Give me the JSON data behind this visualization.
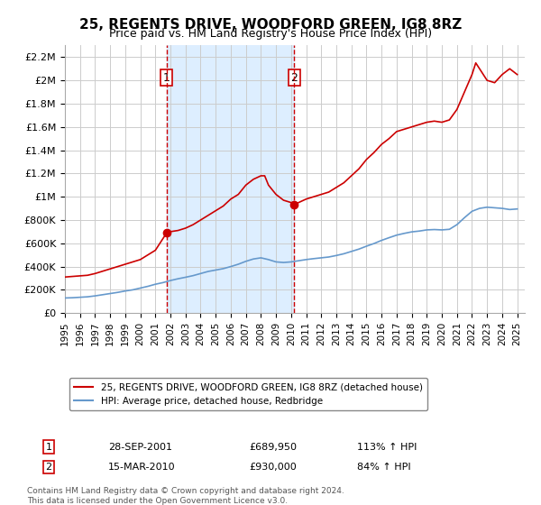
{
  "title": "25, REGENTS DRIVE, WOODFORD GREEN, IG8 8RZ",
  "subtitle": "Price paid vs. HM Land Registry's House Price Index (HPI)",
  "sale1_date": "28-SEP-2001",
  "sale1_price": 689950,
  "sale1_label": "113% ↑ HPI",
  "sale2_date": "15-MAR-2010",
  "sale2_price": 930000,
  "sale2_label": "84% ↑ HPI",
  "sale1_x": 2001.75,
  "sale2_x": 2010.21,
  "legend1": "25, REGENTS DRIVE, WOODFORD GREEN, IG8 8RZ (detached house)",
  "legend2": "HPI: Average price, detached house, Redbridge",
  "footnote": "Contains HM Land Registry data © Crown copyright and database right 2024.\nThis data is licensed under the Open Government Licence v3.0.",
  "red_color": "#cc0000",
  "blue_color": "#6699cc",
  "shade_color": "#ddeeff",
  "ylim": [
    0,
    2300000
  ],
  "xlim": [
    1995,
    2025.5
  ],
  "yticks": [
    0,
    200000,
    400000,
    600000,
    800000,
    1000000,
    1200000,
    1400000,
    1600000,
    1800000,
    2000000,
    2200000
  ],
  "xticks": [
    1995,
    1996,
    1997,
    1998,
    1999,
    2000,
    2001,
    2002,
    2003,
    2004,
    2005,
    2006,
    2007,
    2008,
    2009,
    2010,
    2011,
    2012,
    2013,
    2014,
    2015,
    2016,
    2017,
    2018,
    2019,
    2020,
    2021,
    2022,
    2023,
    2024,
    2025
  ],
  "red_x": [
    1995.0,
    1995.5,
    1996.0,
    1996.5,
    1997.0,
    1997.5,
    1998.0,
    1998.5,
    1999.0,
    1999.5,
    2000.0,
    2000.5,
    2001.0,
    2001.75,
    2002.0,
    2002.5,
    2003.0,
    2003.5,
    2004.0,
    2004.5,
    2005.0,
    2005.5,
    2006.0,
    2006.5,
    2007.0,
    2007.5,
    2008.0,
    2008.25,
    2008.5,
    2009.0,
    2009.5,
    2010.0,
    2010.21,
    2010.5,
    2011.0,
    2011.5,
    2012.0,
    2012.5,
    2013.0,
    2013.5,
    2014.0,
    2014.5,
    2015.0,
    2015.5,
    2016.0,
    2016.5,
    2017.0,
    2017.5,
    2018.0,
    2018.5,
    2019.0,
    2019.5,
    2020.0,
    2020.5,
    2021.0,
    2021.5,
    2022.0,
    2022.25,
    2022.5,
    2023.0,
    2023.5,
    2024.0,
    2024.5,
    2025.0
  ],
  "red_y": [
    310000,
    315000,
    320000,
    325000,
    340000,
    360000,
    380000,
    400000,
    420000,
    440000,
    460000,
    500000,
    540000,
    689950,
    700000,
    710000,
    730000,
    760000,
    800000,
    840000,
    880000,
    920000,
    980000,
    1020000,
    1100000,
    1150000,
    1180000,
    1180000,
    1100000,
    1020000,
    970000,
    950000,
    930000,
    950000,
    980000,
    1000000,
    1020000,
    1040000,
    1080000,
    1120000,
    1180000,
    1240000,
    1320000,
    1380000,
    1450000,
    1500000,
    1560000,
    1580000,
    1600000,
    1620000,
    1640000,
    1650000,
    1640000,
    1660000,
    1750000,
    1900000,
    2050000,
    2150000,
    2100000,
    2000000,
    1980000,
    2050000,
    2100000,
    2050000
  ],
  "blue_x": [
    1995.0,
    1995.5,
    1996.0,
    1996.5,
    1997.0,
    1997.5,
    1998.0,
    1998.5,
    1999.0,
    1999.5,
    2000.0,
    2000.5,
    2001.0,
    2001.5,
    2002.0,
    2002.5,
    2003.0,
    2003.5,
    2004.0,
    2004.5,
    2005.0,
    2005.5,
    2006.0,
    2006.5,
    2007.0,
    2007.5,
    2008.0,
    2008.5,
    2009.0,
    2009.5,
    2010.0,
    2010.5,
    2011.0,
    2011.5,
    2012.0,
    2012.5,
    2013.0,
    2013.5,
    2014.0,
    2014.5,
    2015.0,
    2015.5,
    2016.0,
    2016.5,
    2017.0,
    2017.5,
    2018.0,
    2018.5,
    2019.0,
    2019.5,
    2020.0,
    2020.5,
    2021.0,
    2021.5,
    2022.0,
    2022.5,
    2023.0,
    2023.5,
    2024.0,
    2024.5,
    2025.0
  ],
  "blue_y": [
    130000,
    132000,
    136000,
    140000,
    148000,
    158000,
    168000,
    178000,
    190000,
    200000,
    215000,
    230000,
    248000,
    262000,
    280000,
    295000,
    308000,
    322000,
    340000,
    358000,
    370000,
    382000,
    400000,
    420000,
    445000,
    465000,
    475000,
    460000,
    440000,
    435000,
    440000,
    450000,
    460000,
    468000,
    475000,
    482000,
    495000,
    510000,
    530000,
    550000,
    575000,
    598000,
    625000,
    648000,
    670000,
    685000,
    698000,
    705000,
    715000,
    718000,
    715000,
    720000,
    760000,
    820000,
    875000,
    900000,
    910000,
    905000,
    900000,
    890000,
    895000
  ]
}
